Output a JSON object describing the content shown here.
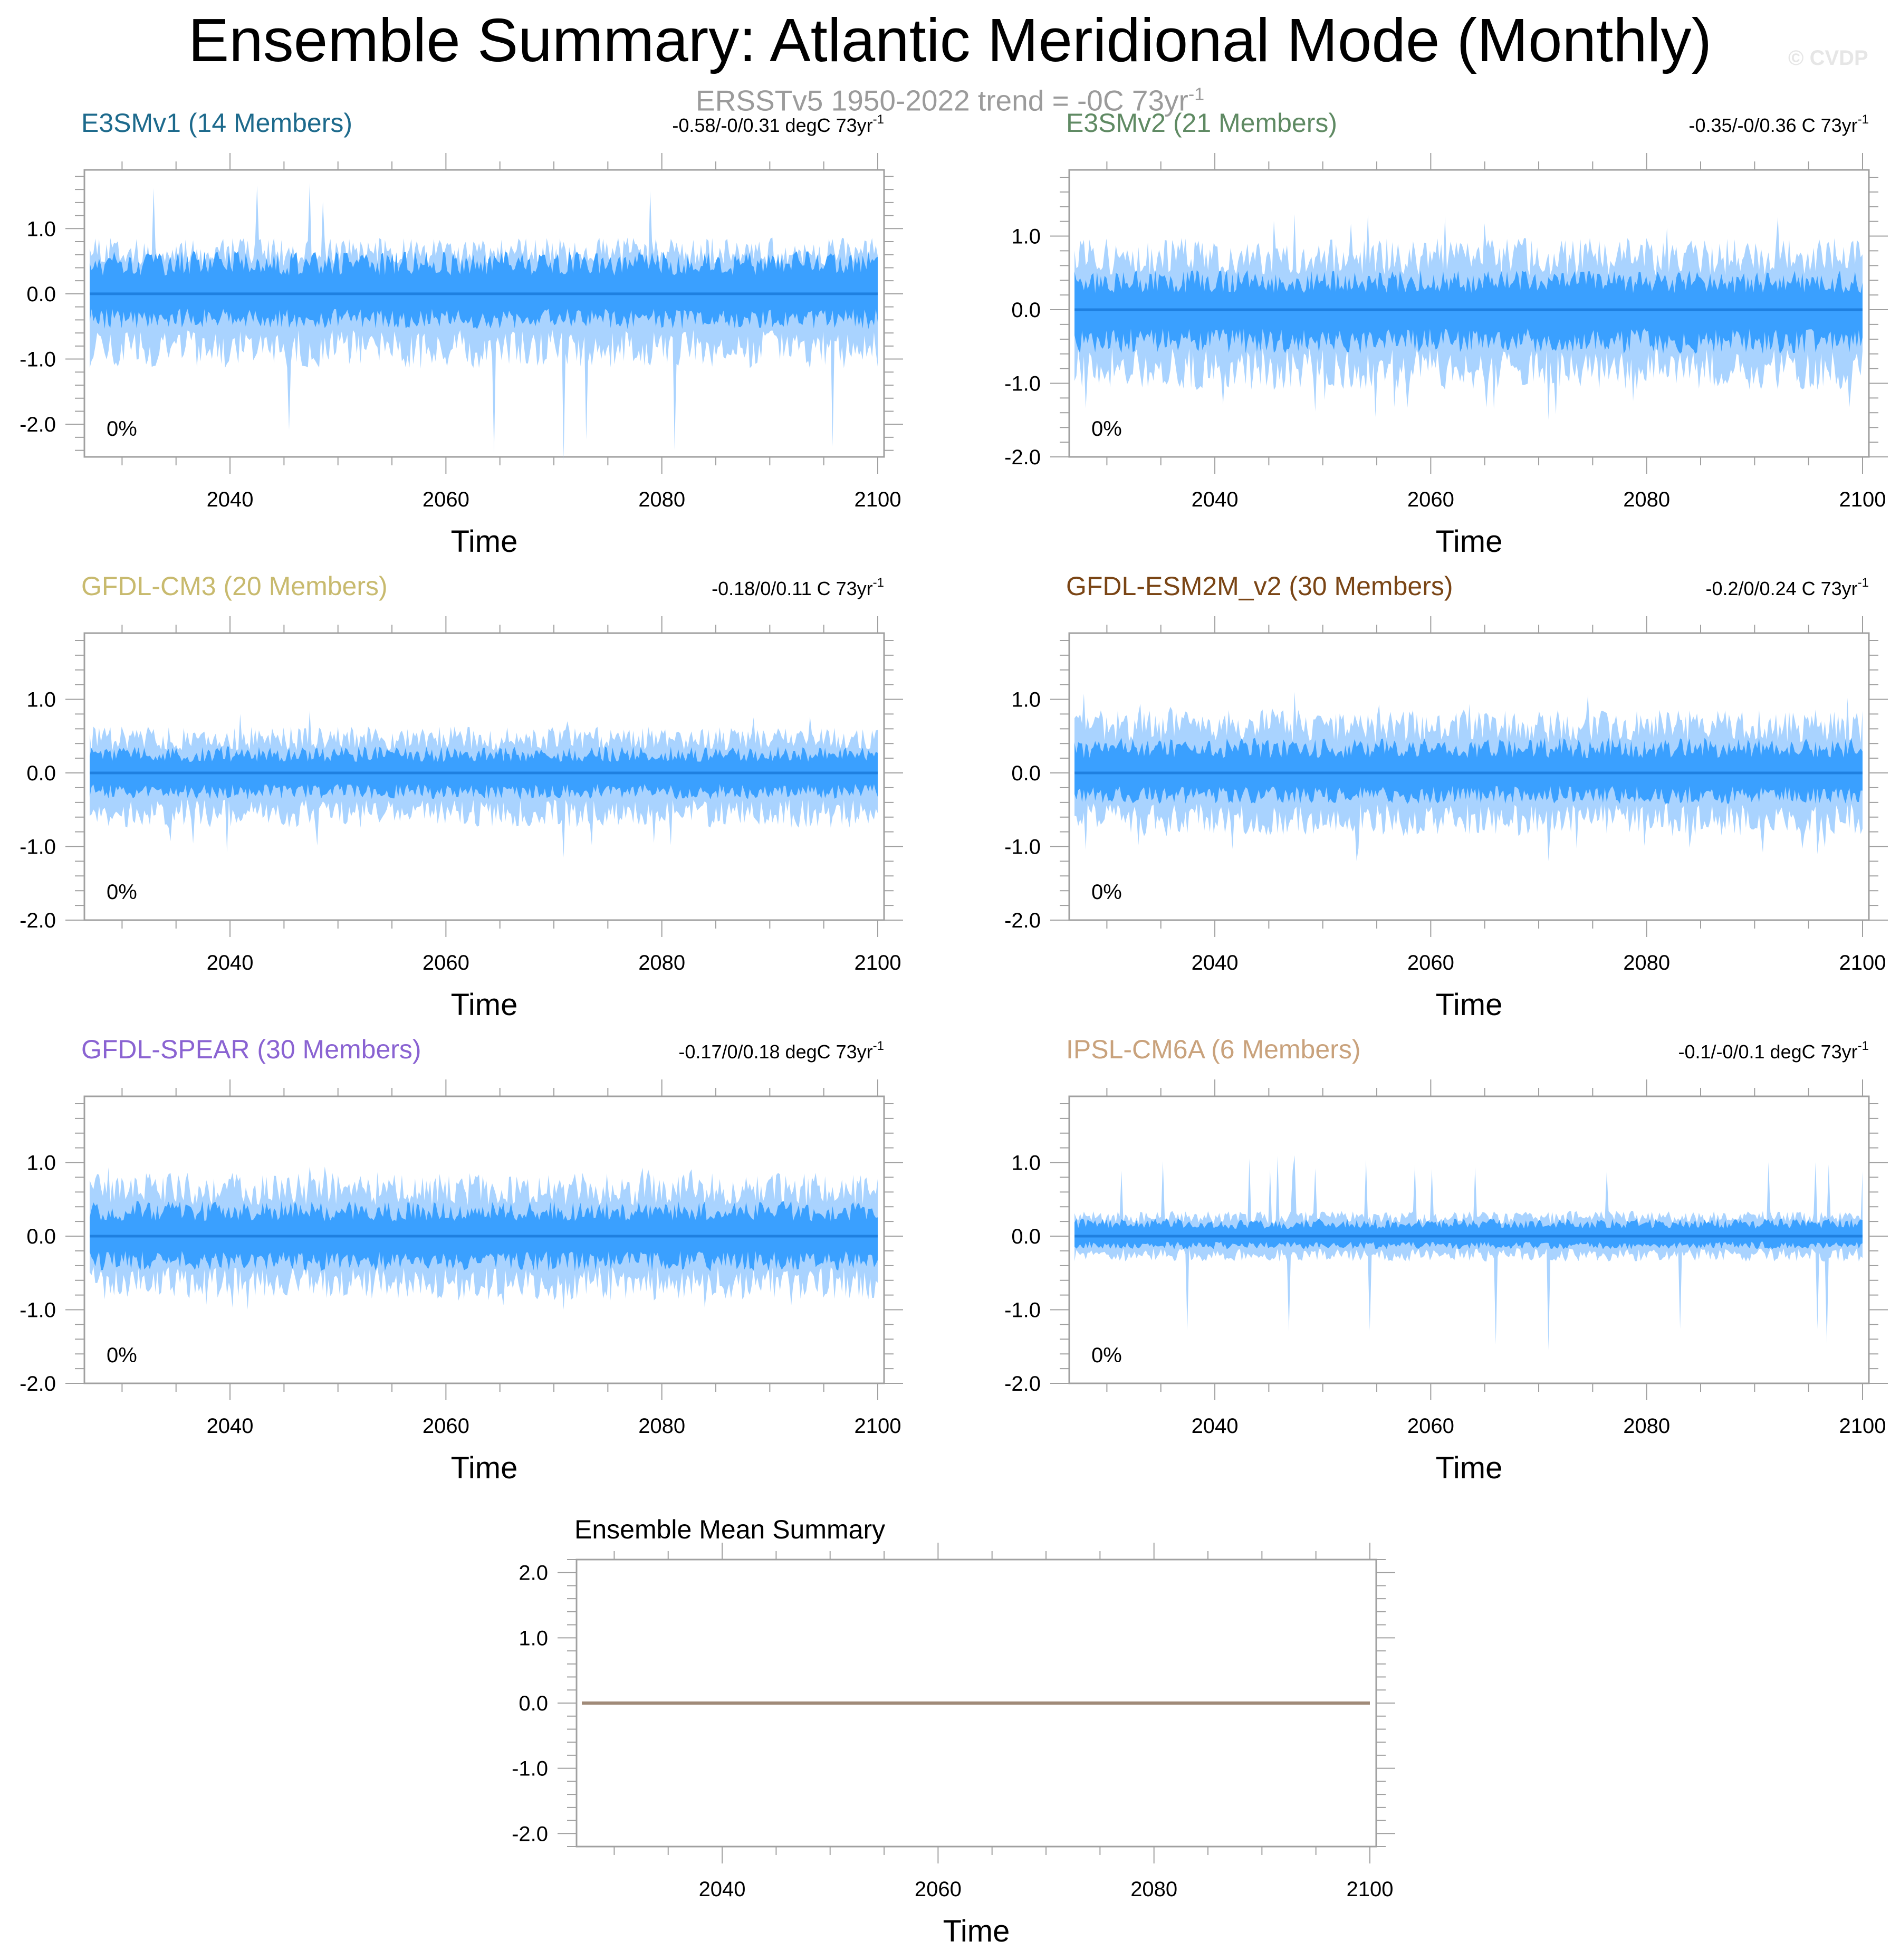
{
  "title": "Ensemble Summary: Atlantic Meridional Mode (Monthly)",
  "subtitle": "ERSSTv5 1950-2022 trend = -0C 73yr",
  "subtitle_sup": "-1",
  "watermark": "© CVDP",
  "colors": {
    "band_outer": "#a9d3ff",
    "band_inner": "#3aa0ff",
    "mean_line": "#1f80e0",
    "summary_line": "#a08a78",
    "frame": "#a0a0a0"
  },
  "chart_data": [
    {
      "type": "area",
      "title": "E3SMv1 (14 Members)",
      "title_color": "#1d6a8c",
      "trend": "-0.58/-0/0.31 degC 73yr",
      "trend_sup": "-1",
      "percent_label": "0%",
      "xlabel": "Time",
      "x_range": [
        2027,
        2100
      ],
      "x_ticks": [
        "2040",
        "2060",
        "2080",
        "2100"
      ],
      "ylim": [
        -2.5,
        1.9
      ],
      "y_ticks": [
        "1.0",
        "0.0",
        "-1.0",
        "-2.0"
      ],
      "ensemble_mean": 0.0,
      "band_outer": [
        -1.0,
        0.75
      ],
      "band_inner": [
        -0.45,
        0.55
      ],
      "peaks": [
        1.7,
        -2.55
      ]
    },
    {
      "type": "area",
      "title": "E3SMv2 (21 Members)",
      "title_color": "#5f8a63",
      "trend": "-0.35/-0/0.36 C 73yr",
      "trend_sup": "-1",
      "percent_label": "0%",
      "xlabel": "Time",
      "x_range": [
        2027,
        2100
      ],
      "x_ticks": [
        "2040",
        "2060",
        "2080",
        "2100"
      ],
      "ylim": [
        -2.0,
        1.9
      ],
      "y_ticks": [
        "1.0",
        "0.0",
        "-1.0",
        "-2.0"
      ],
      "ensemble_mean": 0.0,
      "band_outer": [
        -0.95,
        0.85
      ],
      "band_inner": [
        -0.5,
        0.45
      ],
      "peaks": [
        1.3,
        -1.5
      ]
    },
    {
      "type": "area",
      "title": "GFDL-CM3 (20 Members)",
      "title_color": "#c8ba6e",
      "trend": "-0.18/0/0.11 C 73yr",
      "trend_sup": "-1",
      "percent_label": "0%",
      "xlabel": "Time",
      "x_range": [
        2027,
        2100
      ],
      "x_ticks": [
        "2040",
        "2060",
        "2080",
        "2100"
      ],
      "ylim": [
        -2.0,
        1.9
      ],
      "y_ticks": [
        "1.0",
        "0.0",
        "-1.0",
        "-2.0"
      ],
      "ensemble_mean": 0.0,
      "band_outer": [
        -0.65,
        0.55
      ],
      "band_inner": [
        -0.3,
        0.3
      ],
      "peaks": [
        0.85,
        -1.15
      ]
    },
    {
      "type": "area",
      "title": "GFDL-ESM2M_v2 (30 Members)",
      "title_color": "#7a4515",
      "trend": "-0.2/0/0.24 C 73yr",
      "trend_sup": "-1",
      "percent_label": "0%",
      "xlabel": "Time",
      "x_range": [
        2027,
        2100
      ],
      "x_ticks": [
        "2040",
        "2060",
        "2080",
        "2100"
      ],
      "ylim": [
        -2.0,
        1.9
      ],
      "y_ticks": [
        "1.0",
        "0.0",
        "-1.0",
        "-2.0"
      ],
      "ensemble_mean": 0.0,
      "band_outer": [
        -0.75,
        0.75
      ],
      "band_inner": [
        -0.35,
        0.4
      ],
      "peaks": [
        1.1,
        -1.2
      ]
    },
    {
      "type": "area",
      "title": "GFDL-SPEAR (30 Members)",
      "title_color": "#8a63d2",
      "trend": "-0.17/0/0.18 degC 73yr",
      "trend_sup": "-1",
      "percent_label": "0%",
      "xlabel": "Time",
      "x_range": [
        2027,
        2100
      ],
      "x_ticks": [
        "2040",
        "2060",
        "2080",
        "2100"
      ],
      "ylim": [
        -2.0,
        1.9
      ],
      "y_ticks": [
        "1.0",
        "0.0",
        "-1.0",
        "-2.0"
      ],
      "ensemble_mean": 0.0,
      "band_outer": [
        -0.75,
        0.75
      ],
      "band_inner": [
        -0.4,
        0.4
      ],
      "peaks": [
        0.95,
        -1.0
      ]
    },
    {
      "type": "area",
      "title": "IPSL-CM6A (6 Members)",
      "title_color": "#c9a27c",
      "trend": "-0.1/-0/0.1 degC 73yr",
      "trend_sup": "-1",
      "percent_label": "0%",
      "xlabel": "Time",
      "x_range": [
        2027,
        2100
      ],
      "x_ticks": [
        "2040",
        "2060",
        "2080",
        "2100"
      ],
      "ylim": [
        -2.0,
        1.9
      ],
      "y_ticks": [
        "1.0",
        "0.0",
        "-1.0",
        "-2.0"
      ],
      "ensemble_mean": 0.0,
      "band_outer": [
        -0.3,
        0.3
      ],
      "band_inner": [
        -0.15,
        0.2
      ],
      "peaks": [
        1.1,
        -1.55
      ]
    },
    {
      "type": "line",
      "title": "Ensemble Mean Summary",
      "xlabel": "Time",
      "x_range": [
        2027,
        2100
      ],
      "x_ticks": [
        "2040",
        "2060",
        "2080",
        "2100"
      ],
      "ylim": [
        -2.2,
        2.2
      ],
      "y_ticks": [
        "2.0",
        "1.0",
        "0.0",
        "-1.0",
        "-2.0"
      ],
      "series": [
        {
          "name": "ensemble mean",
          "values": [
            0.0,
            0.0
          ]
        }
      ]
    }
  ]
}
